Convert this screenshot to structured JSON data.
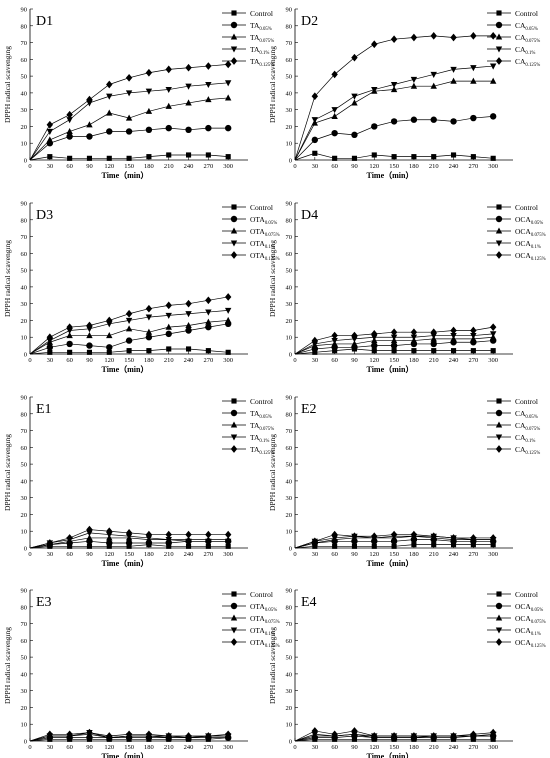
{
  "chart_data": [
    {
      "type": "line",
      "panel_label": "D1",
      "xlabel": "Time（min）",
      "ylabel": "DPPH radical scavengıng",
      "x": [
        0,
        30,
        60,
        90,
        120,
        150,
        180,
        210,
        240,
        270,
        300
      ],
      "xlim": [
        0,
        330
      ],
      "ylim": [
        0,
        90
      ],
      "yticks": [
        0,
        10,
        20,
        30,
        40,
        50,
        60,
        70,
        80,
        90
      ],
      "xticks": [
        0,
        30,
        60,
        90,
        120,
        150,
        180,
        210,
        240,
        270,
        300
      ],
      "legend_position": "top-right",
      "series": [
        {
          "name": "Control",
          "sub": "",
          "marker": "square",
          "values": [
            0,
            2,
            1,
            1,
            1,
            1,
            2,
            3,
            3,
            3,
            2
          ]
        },
        {
          "name": "TA",
          "sub": "0.05%",
          "marker": "circle",
          "values": [
            0,
            10,
            14,
            14,
            17,
            17,
            18,
            19,
            18,
            19,
            19
          ]
        },
        {
          "name": "TA",
          "sub": "0.075%",
          "marker": "triangle-up",
          "values": [
            0,
            12,
            17,
            21,
            28,
            25,
            29,
            32,
            34,
            36,
            37
          ]
        },
        {
          "name": "TA",
          "sub": "0.1%",
          "marker": "triangle-down",
          "values": [
            0,
            17,
            24,
            34,
            38,
            40,
            41,
            42,
            44,
            45,
            46
          ]
        },
        {
          "name": "TA",
          "sub": "0.125%",
          "marker": "diamond",
          "values": [
            0,
            21,
            27,
            36,
            45,
            49,
            52,
            54,
            55,
            56,
            57
          ]
        }
      ]
    },
    {
      "type": "line",
      "panel_label": "D2",
      "xlabel": "Time（min）",
      "ylabel": "DPPH radical scavengıng",
      "x": [
        0,
        30,
        60,
        90,
        120,
        150,
        180,
        210,
        240,
        270,
        300
      ],
      "xlim": [
        0,
        330
      ],
      "ylim": [
        0,
        90
      ],
      "yticks": [
        0,
        10,
        20,
        30,
        40,
        50,
        60,
        70,
        80,
        90
      ],
      "xticks": [
        0,
        30,
        60,
        90,
        120,
        150,
        180,
        210,
        240,
        270,
        300
      ],
      "legend_position": "top-right",
      "series": [
        {
          "name": "Control",
          "sub": "",
          "marker": "square",
          "values": [
            0,
            4,
            1,
            1,
            3,
            2,
            2,
            2,
            3,
            2,
            1
          ]
        },
        {
          "name": "CA",
          "sub": "0.05%",
          "marker": "circle",
          "values": [
            0,
            12,
            16,
            15,
            20,
            23,
            24,
            24,
            23,
            25,
            26
          ]
        },
        {
          "name": "CA",
          "sub": "0.075%",
          "marker": "triangle-up",
          "values": [
            0,
            22,
            26,
            34,
            41,
            42,
            44,
            44,
            47,
            47,
            47
          ]
        },
        {
          "name": "CA",
          "sub": "0.1%",
          "marker": "triangle-down",
          "values": [
            0,
            24,
            30,
            38,
            42,
            45,
            48,
            51,
            54,
            55,
            56
          ]
        },
        {
          "name": "CA",
          "sub": "0.125%",
          "marker": "diamond",
          "values": [
            0,
            38,
            51,
            61,
            69,
            72,
            73,
            74,
            73,
            74,
            74
          ]
        }
      ]
    },
    {
      "type": "line",
      "panel_label": "D3",
      "xlabel": "Time（min）",
      "ylabel": "DPPH radical scavengıng",
      "x": [
        0,
        30,
        60,
        90,
        120,
        150,
        180,
        210,
        240,
        270,
        300
      ],
      "xlim": [
        0,
        330
      ],
      "ylim": [
        0,
        90
      ],
      "yticks": [
        0,
        10,
        20,
        30,
        40,
        50,
        60,
        70,
        80,
        90
      ],
      "xticks": [
        0,
        30,
        60,
        90,
        120,
        150,
        180,
        210,
        240,
        270,
        300
      ],
      "legend_position": "top-right",
      "series": [
        {
          "name": "Control",
          "sub": "",
          "marker": "square",
          "values": [
            0,
            1,
            1,
            1,
            1,
            2,
            2,
            3,
            3,
            2,
            1
          ]
        },
        {
          "name": "OTA",
          "sub": "0.05%",
          "marker": "circle",
          "values": [
            0,
            4,
            6,
            5,
            4,
            8,
            10,
            12,
            14,
            16,
            18
          ]
        },
        {
          "name": "OTA",
          "sub": "0.075%",
          "marker": "triangle-up",
          "values": [
            0,
            7,
            11,
            11,
            11,
            15,
            13,
            16,
            17,
            19,
            20
          ]
        },
        {
          "name": "OTA",
          "sub": "0.1%",
          "marker": "triangle-down",
          "values": [
            0,
            8,
            14,
            15,
            18,
            20,
            22,
            23,
            24,
            25,
            26
          ]
        },
        {
          "name": "OTA",
          "sub": "0.125%",
          "marker": "diamond",
          "values": [
            0,
            10,
            16,
            17,
            20,
            24,
            27,
            29,
            30,
            32,
            34
          ]
        }
      ]
    },
    {
      "type": "line",
      "panel_label": "D4",
      "xlabel": "Time（min）",
      "ylabel": "DPPH radical scavengıng",
      "x": [
        0,
        30,
        60,
        90,
        120,
        150,
        180,
        210,
        240,
        270,
        300
      ],
      "xlim": [
        0,
        330
      ],
      "ylim": [
        0,
        90
      ],
      "yticks": [
        0,
        10,
        20,
        30,
        40,
        50,
        60,
        70,
        80,
        90
      ],
      "xticks": [
        0,
        30,
        60,
        90,
        120,
        150,
        180,
        210,
        240,
        270,
        300
      ],
      "legend_position": "top-right",
      "series": [
        {
          "name": "Control",
          "sub": "",
          "marker": "square",
          "values": [
            0,
            1,
            2,
            3,
            2,
            2,
            2,
            2,
            2,
            2,
            2
          ]
        },
        {
          "name": "OCA",
          "sub": "0.05%",
          "marker": "circle",
          "values": [
            0,
            3,
            4,
            4,
            5,
            5,
            6,
            6,
            7,
            7,
            8
          ]
        },
        {
          "name": "OCA",
          "sub": "0.075%",
          "marker": "triangle-up",
          "values": [
            0,
            5,
            6,
            6,
            8,
            8,
            8,
            9,
            9,
            9,
            10
          ]
        },
        {
          "name": "OCA",
          "sub": "0.1%",
          "marker": "triangle-down",
          "values": [
            0,
            6,
            8,
            9,
            10,
            10,
            10,
            11,
            11,
            11,
            12
          ]
        },
        {
          "name": "OCA",
          "sub": "0.125%",
          "marker": "diamond",
          "values": [
            0,
            8,
            11,
            11,
            12,
            13,
            13,
            13,
            14,
            14,
            16
          ]
        }
      ]
    },
    {
      "type": "line",
      "panel_label": "E1",
      "xlabel": "Time（min）",
      "ylabel": "DPPH radical scavengıng",
      "x": [
        0,
        30,
        60,
        90,
        120,
        150,
        180,
        210,
        240,
        270,
        300
      ],
      "xlim": [
        0,
        330
      ],
      "ylim": [
        0,
        90
      ],
      "yticks": [
        0,
        10,
        20,
        30,
        40,
        50,
        60,
        70,
        80,
        90
      ],
      "xticks": [
        0,
        30,
        60,
        90,
        120,
        150,
        180,
        210,
        240,
        270,
        300
      ],
      "legend_position": "top-right",
      "series": [
        {
          "name": "Control",
          "sub": "",
          "marker": "square",
          "values": [
            0,
            1,
            1,
            1,
            1,
            1,
            2,
            1,
            1,
            1,
            1
          ]
        },
        {
          "name": "TA",
          "sub": "0.05%",
          "marker": "circle",
          "values": [
            0,
            2,
            3,
            4,
            3,
            3,
            3,
            3,
            4,
            4,
            4
          ]
        },
        {
          "name": "TA",
          "sub": "0.075%",
          "marker": "triangle-up",
          "values": [
            0,
            2,
            4,
            6,
            6,
            6,
            5,
            5,
            5,
            5,
            5
          ]
        },
        {
          "name": "TA",
          "sub": "0.1%",
          "marker": "triangle-down",
          "values": [
            0,
            3,
            5,
            9,
            8,
            7,
            6,
            5,
            4,
            4,
            4
          ]
        },
        {
          "name": "TA",
          "sub": "0.125%",
          "marker": "diamond",
          "values": [
            0,
            3,
            6,
            11,
            10,
            9,
            8,
            8,
            8,
            8,
            8
          ]
        }
      ]
    },
    {
      "type": "line",
      "panel_label": "E2",
      "xlabel": "Time（min）",
      "ylabel": "DPPH radical scavengıng",
      "x": [
        0,
        30,
        60,
        90,
        120,
        150,
        180,
        210,
        240,
        270,
        300
      ],
      "xlim": [
        0,
        330
      ],
      "ylim": [
        0,
        90
      ],
      "yticks": [
        0,
        10,
        20,
        30,
        40,
        50,
        60,
        70,
        80,
        90
      ],
      "xticks": [
        0,
        30,
        60,
        90,
        120,
        150,
        180,
        210,
        240,
        270,
        300
      ],
      "legend_position": "top-right",
      "series": [
        {
          "name": "Control",
          "sub": "",
          "marker": "square",
          "values": [
            0,
            1,
            1,
            1,
            1,
            1,
            2,
            2,
            2,
            2,
            2
          ]
        },
        {
          "name": "CA",
          "sub": "0.05%",
          "marker": "circle",
          "values": [
            0,
            3,
            4,
            4,
            4,
            4,
            5,
            5,
            4,
            4,
            4
          ]
        },
        {
          "name": "CA",
          "sub": "0.075%",
          "marker": "triangle-up",
          "values": [
            0,
            3,
            5,
            6,
            6,
            6,
            7,
            6,
            5,
            5,
            5
          ]
        },
        {
          "name": "CA",
          "sub": "0.1%",
          "marker": "triangle-down",
          "values": [
            0,
            4,
            6,
            7,
            6,
            7,
            7,
            7,
            6,
            5,
            5
          ]
        },
        {
          "name": "CA",
          "sub": "0.125%",
          "marker": "diamond",
          "values": [
            0,
            4,
            8,
            7,
            7,
            8,
            8,
            7,
            6,
            6,
            6
          ]
        }
      ]
    },
    {
      "type": "line",
      "panel_label": "E3",
      "xlabel": "Time（min）",
      "ylabel": "DPPH radical scavengıng",
      "x": [
        0,
        30,
        60,
        90,
        120,
        150,
        180,
        210,
        240,
        270,
        300
      ],
      "xlim": [
        0,
        330
      ],
      "ylim": [
        0,
        90
      ],
      "yticks": [
        0,
        10,
        20,
        30,
        40,
        50,
        60,
        70,
        80,
        90
      ],
      "xticks": [
        0,
        30,
        60,
        90,
        120,
        150,
        180,
        210,
        240,
        270,
        300
      ],
      "legend_position": "top-right",
      "series": [
        {
          "name": "Control",
          "sub": "",
          "marker": "square",
          "values": [
            0,
            1,
            1,
            1,
            1,
            1,
            1,
            1,
            1,
            1,
            2
          ]
        },
        {
          "name": "OTA",
          "sub": "0.05%",
          "marker": "circle",
          "values": [
            0,
            2,
            2,
            2,
            2,
            2,
            2,
            2,
            2,
            2,
            2
          ]
        },
        {
          "name": "OTA",
          "sub": "0.075%",
          "marker": "triangle-up",
          "values": [
            0,
            3,
            3,
            4,
            2,
            3,
            3,
            2,
            2,
            3,
            3
          ]
        },
        {
          "name": "OTA",
          "sub": "0.1%",
          "marker": "triangle-down",
          "values": [
            0,
            3,
            3,
            5,
            2,
            3,
            3,
            3,
            2,
            3,
            3
          ]
        },
        {
          "name": "OTA",
          "sub": "0.125%",
          "marker": "diamond",
          "values": [
            0,
            4,
            4,
            5,
            3,
            4,
            4,
            3,
            3,
            3,
            4
          ]
        }
      ]
    },
    {
      "type": "line",
      "panel_label": "E4",
      "xlabel": "Time（min）",
      "ylabel": "DPPH radical scavengıng",
      "x": [
        0,
        30,
        60,
        90,
        120,
        150,
        180,
        210,
        240,
        270,
        300
      ],
      "xlim": [
        0,
        330
      ],
      "ylim": [
        0,
        90
      ],
      "yticks": [
        0,
        10,
        20,
        30,
        40,
        50,
        60,
        70,
        80,
        90
      ],
      "xticks": [
        0,
        30,
        60,
        90,
        120,
        150,
        180,
        210,
        240,
        270,
        300
      ],
      "legend_position": "top-right",
      "series": [
        {
          "name": "Control",
          "sub": "",
          "marker": "square",
          "values": [
            0,
            1,
            1,
            1,
            1,
            1,
            1,
            1,
            1,
            1,
            1
          ]
        },
        {
          "name": "OCA",
          "sub": "0.05%",
          "marker": "circle",
          "values": [
            0,
            2,
            2,
            3,
            2,
            2,
            2,
            2,
            2,
            3,
            3
          ]
        },
        {
          "name": "OCA",
          "sub": "0.075%",
          "marker": "triangle-up",
          "values": [
            0,
            3,
            3,
            4,
            2,
            2,
            2,
            3,
            3,
            3,
            3
          ]
        },
        {
          "name": "OCA",
          "sub": "0.1%",
          "marker": "triangle-down",
          "values": [
            0,
            4,
            3,
            4,
            3,
            3,
            3,
            3,
            3,
            3,
            4
          ]
        },
        {
          "name": "OCA",
          "sub": "0.125%",
          "marker": "diamond",
          "values": [
            0,
            6,
            4,
            6,
            3,
            3,
            3,
            3,
            3,
            4,
            5
          ]
        }
      ]
    }
  ]
}
